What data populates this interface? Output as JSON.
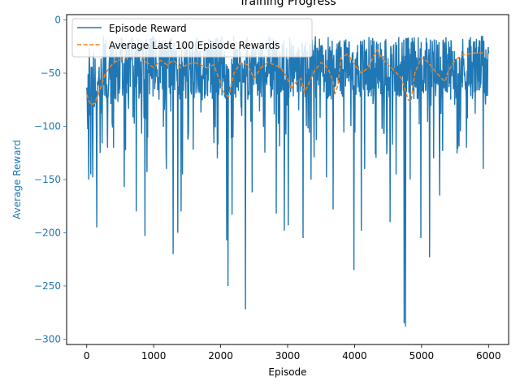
{
  "chart_data": {
    "type": "line",
    "title": "Training Progress",
    "xlabel": "Episode",
    "ylabel": "Average Reward",
    "xlim": [
      -300,
      6300
    ],
    "ylim": [
      -305,
      5
    ],
    "x_ticks": [
      0,
      1000,
      2000,
      3000,
      4000,
      5000,
      6000
    ],
    "y_ticks": [
      0,
      -50,
      -100,
      -150,
      -200,
      -250,
      -300
    ],
    "x_tick_labels": [
      "0",
      "1000",
      "2000",
      "3000",
      "4000",
      "5000",
      "6000"
    ],
    "y_tick_labels": [
      "0",
      "−50",
      "−100",
      "−150",
      "−200",
      "−250",
      "−300"
    ],
    "grid": false,
    "legend_position": "top-left",
    "series": [
      {
        "name": "Episode Reward",
        "color": "#1f77b4",
        "style": "solid",
        "range_x": [
          0,
          6000
        ],
        "typical_band": [
          -75,
          -15
        ],
        "spikes": [
          [
            30,
            -150
          ],
          [
            60,
            -145
          ],
          [
            90,
            -148
          ],
          [
            150,
            -195
          ],
          [
            200,
            -125
          ],
          [
            560,
            -157
          ],
          [
            740,
            -180
          ],
          [
            870,
            -203
          ],
          [
            900,
            -143
          ],
          [
            1190,
            -140
          ],
          [
            1290,
            -220
          ],
          [
            1360,
            -200
          ],
          [
            1410,
            -180
          ],
          [
            1430,
            -145
          ],
          [
            1590,
            -122
          ],
          [
            1950,
            -130
          ],
          [
            2090,
            -207
          ],
          [
            2110,
            -250
          ],
          [
            2170,
            -183
          ],
          [
            2370,
            -272
          ],
          [
            2470,
            -162
          ],
          [
            2830,
            -182
          ],
          [
            2950,
            -198
          ],
          [
            3010,
            -193
          ],
          [
            3230,
            -205
          ],
          [
            3350,
            -150
          ],
          [
            3580,
            -148
          ],
          [
            3680,
            -178
          ],
          [
            3990,
            -235
          ],
          [
            4100,
            -198
          ],
          [
            4150,
            -140
          ],
          [
            4530,
            -190
          ],
          [
            4620,
            -145
          ],
          [
            4740,
            -285
          ],
          [
            4760,
            -288
          ],
          [
            4830,
            -150
          ],
          [
            4990,
            -205
          ],
          [
            5120,
            -223
          ],
          [
            5180,
            -130
          ],
          [
            5270,
            -165
          ],
          [
            5670,
            -120
          ],
          [
            5920,
            -140
          ]
        ]
      },
      {
        "name": "Average Last 100 Episode Rewards",
        "color": "#ff7f0e",
        "style": "dashed",
        "x": [
          0,
          60,
          120,
          200,
          280,
          400,
          600,
          800,
          900,
          1000,
          1100,
          1200,
          1300,
          1400,
          1500,
          1600,
          1700,
          1800,
          1900,
          2000,
          2060,
          2120,
          2200,
          2300,
          2400,
          2500,
          2600,
          2700,
          2800,
          2900,
          3000,
          3050,
          3100,
          3200,
          3250,
          3300,
          3400,
          3500,
          3600,
          3680,
          3700,
          3750,
          3800,
          3900,
          4000,
          4100,
          4200,
          4300,
          4340,
          4400,
          4500,
          4600,
          4700,
          4800,
          4840,
          4900,
          5000,
          5100,
          5200,
          5300,
          5350,
          5400,
          5500,
          5600,
          5700,
          5800,
          5900,
          6000
        ],
        "y": [
          -70,
          -80,
          -78,
          -65,
          -50,
          -40,
          -35,
          -33,
          -40,
          -45,
          -38,
          -42,
          -38,
          -45,
          -42,
          -40,
          -42,
          -45,
          -42,
          -60,
          -70,
          -72,
          -50,
          -40,
          -42,
          -55,
          -45,
          -40,
          -42,
          -45,
          -55,
          -65,
          -60,
          -55,
          -68,
          -62,
          -48,
          -40,
          -45,
          -58,
          -70,
          -62,
          -35,
          -32,
          -42,
          -50,
          -45,
          -32,
          -28,
          -35,
          -42,
          -48,
          -55,
          -75,
          -77,
          -50,
          -35,
          -40,
          -48,
          -55,
          -58,
          -48,
          -38,
          -33,
          -32,
          -31,
          -31,
          -32
        ]
      }
    ]
  }
}
